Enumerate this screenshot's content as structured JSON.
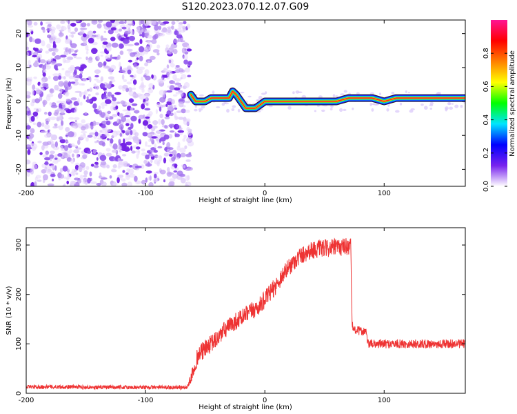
{
  "title": "S120.2023.070.12.07.G09",
  "chart_data": [
    {
      "type": "heatmap",
      "xlabel": "Height of straight line (km)",
      "ylabel": "Frequency (Hz)",
      "xlim": [
        -200,
        168
      ],
      "ylim": [
        -25,
        24
      ],
      "xticks": [
        -200,
        -100,
        0,
        100
      ],
      "yticks": [
        -20,
        -10,
        0,
        10,
        20
      ],
      "colorbar": {
        "label": "Normalized spectral amplitude",
        "ticks": [
          0.0,
          0.2,
          0.4,
          0.6,
          0.8
        ],
        "tick_labels": [
          "0.0",
          "0.2",
          "0.4",
          "0.6",
          "0.8"
        ],
        "range": [
          0,
          1
        ],
        "colors": [
          "#ffffff",
          "#7722ee",
          "#0000ff",
          "#00e5ff",
          "#00ff00",
          "#ffff00",
          "#ff8000",
          "#ff0000",
          "#ff1493"
        ]
      },
      "noise_region_x": [
        -200,
        -62
      ],
      "ridge": {
        "x": [
          -62,
          -58,
          -55,
          -50,
          -45,
          -40,
          -35,
          -30,
          -27,
          -24,
          -20,
          -16,
          -12,
          -8,
          -4,
          0,
          10,
          20,
          30,
          40,
          50,
          60,
          70,
          80,
          90,
          100,
          110,
          120,
          130,
          140,
          150,
          160,
          168
        ],
        "frequency_hz": [
          2,
          0,
          0,
          0,
          1,
          1,
          1,
          1,
          3,
          2,
          0,
          -2,
          -2,
          -2,
          -1,
          0,
          0,
          0,
          0,
          0,
          0,
          0,
          1,
          1,
          1,
          0,
          1,
          1,
          1,
          1,
          1,
          1,
          1
        ]
      }
    },
    {
      "type": "line",
      "xlabel": "Height of straight line (km)",
      "ylabel": "SNR (10 * v/v)",
      "xlim": [
        -200,
        168
      ],
      "ylim": [
        0,
        335
      ],
      "xticks": [
        -200,
        -100,
        0,
        100
      ],
      "yticks": [
        0,
        100,
        200,
        300
      ],
      "series": [
        {
          "color": "#ee3333",
          "x": [
            -200,
            -180,
            -160,
            -140,
            -120,
            -100,
            -80,
            -65,
            -62,
            -58,
            -55,
            -50,
            -45,
            -40,
            -35,
            -30,
            -25,
            -20,
            -15,
            -10,
            -5,
            0,
            5,
            10,
            15,
            20,
            25,
            30,
            35,
            40,
            45,
            50,
            55,
            60,
            65,
            70,
            72,
            73,
            75,
            80,
            85,
            86,
            90,
            100,
            110,
            120,
            130,
            140,
            150,
            160,
            168
          ],
          "y": [
            13,
            13,
            13,
            12,
            12,
            12,
            12,
            12,
            30,
            65,
            80,
            90,
            100,
            110,
            125,
            135,
            145,
            152,
            160,
            168,
            175,
            190,
            205,
            220,
            240,
            255,
            268,
            278,
            285,
            290,
            292,
            293,
            294,
            295,
            296,
            298,
            300,
            140,
            128,
            126,
            125,
            100,
            100,
            100,
            100,
            100,
            100,
            100,
            100,
            100,
            100
          ]
        }
      ]
    }
  ]
}
